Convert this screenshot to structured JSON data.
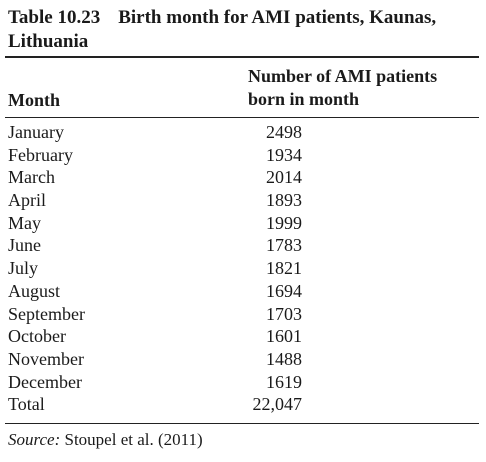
{
  "table": {
    "number": "Table 10.23",
    "title_line1": "Birth month for AMI patients, Kaunas,",
    "title_line2": "Lithuania",
    "col_month": "Month",
    "col_count_line1": "Number of AMI patients",
    "col_count_line2": "born in month",
    "rows": [
      {
        "month": "January",
        "count": "2498"
      },
      {
        "month": "February",
        "count": "1934"
      },
      {
        "month": "March",
        "count": "2014"
      },
      {
        "month": "April",
        "count": "1893"
      },
      {
        "month": "May",
        "count": "1999"
      },
      {
        "month": "June",
        "count": "1783"
      },
      {
        "month": "July",
        "count": "1821"
      },
      {
        "month": "August",
        "count": "1694"
      },
      {
        "month": "September",
        "count": "1703"
      },
      {
        "month": "October",
        "count": "1601"
      },
      {
        "month": "November",
        "count": "1488"
      },
      {
        "month": "December",
        "count": "1619"
      },
      {
        "month": "Total",
        "count": "22,047"
      }
    ],
    "source_label": "Source:",
    "source_text": " Stoupel et al. (2011)"
  }
}
